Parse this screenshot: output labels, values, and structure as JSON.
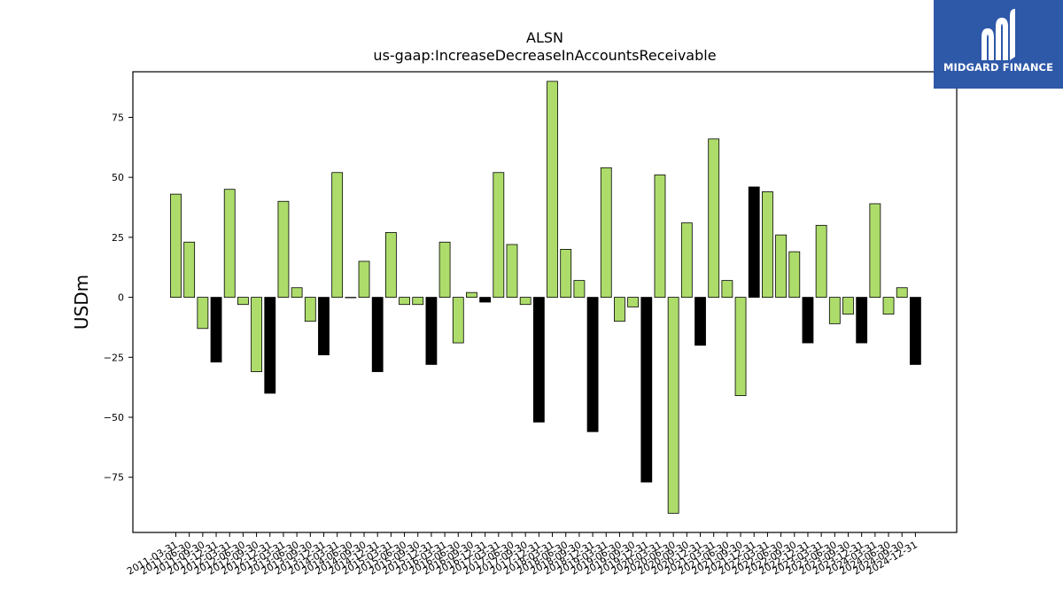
{
  "logo": {
    "text": "MIDGARD FINANCE",
    "background": "#2e58a8"
  },
  "colors": {
    "positive": "#addc6b",
    "negative_q4": "#000000",
    "edge": "#000000"
  },
  "chart_data": {
    "type": "bar",
    "title": "ALSN",
    "subtitle": "us-gaap:IncreaseDecreaseInAccountsReceivable",
    "ylabel": "USDm",
    "xlabel": "",
    "ylim": [
      -98,
      94
    ],
    "yticks": [
      75,
      50,
      25,
      0,
      -25,
      -50,
      -75
    ],
    "ytick_labels": [
      "75",
      "50",
      "25",
      "0",
      "−25",
      "−50",
      "−75"
    ],
    "categories": [
      "2011-03-31",
      "2011-06-30",
      "2011-09-30",
      "2011-12-31",
      "2012-03-31",
      "2012-06-30",
      "2012-09-30",
      "2012-12-31",
      "2013-03-31",
      "2013-06-30",
      "2013-09-30",
      "2013-12-31",
      "2014-03-31",
      "2014-06-30",
      "2014-09-30",
      "2014-12-31",
      "2015-03-31",
      "2015-06-30",
      "2015-09-30",
      "2015-12-31",
      "2016-03-31",
      "2016-06-30",
      "2016-09-30",
      "2016-12-31",
      "2017-03-31",
      "2017-06-30",
      "2017-09-30",
      "2017-12-31",
      "2018-03-31",
      "2018-06-30",
      "2018-09-30",
      "2018-12-31",
      "2019-03-31",
      "2019-06-30",
      "2019-09-30",
      "2019-12-31",
      "2020-03-31",
      "2020-06-30",
      "2020-09-30",
      "2020-12-31",
      "2021-03-31",
      "2021-06-30",
      "2021-09-30",
      "2021-12-31",
      "2022-03-31",
      "2022-06-30",
      "2022-09-30",
      "2022-12-31",
      "2023-03-31",
      "2023-06-30",
      "2023-09-30",
      "2023-12-31",
      "2024-03-31",
      "2024-06-30",
      "2024-09-30",
      "2024-12-31"
    ],
    "values": [
      43,
      23,
      -13,
      -27,
      45,
      -3,
      -31,
      -40,
      40,
      4,
      -10,
      -24,
      52,
      0,
      15,
      -31,
      27,
      -3,
      -3,
      -28,
      23,
      -19,
      2,
      -2,
      52,
      22,
      -3,
      -52,
      90,
      20,
      7,
      -56,
      54,
      -10,
      -4,
      -77,
      51,
      -90,
      31,
      -20,
      66,
      7,
      -41,
      46,
      44,
      26,
      19,
      -19,
      30,
      -11,
      -7,
      -19,
      39,
      -7,
      4,
      -28
    ],
    "grid": false,
    "legend": "none"
  }
}
